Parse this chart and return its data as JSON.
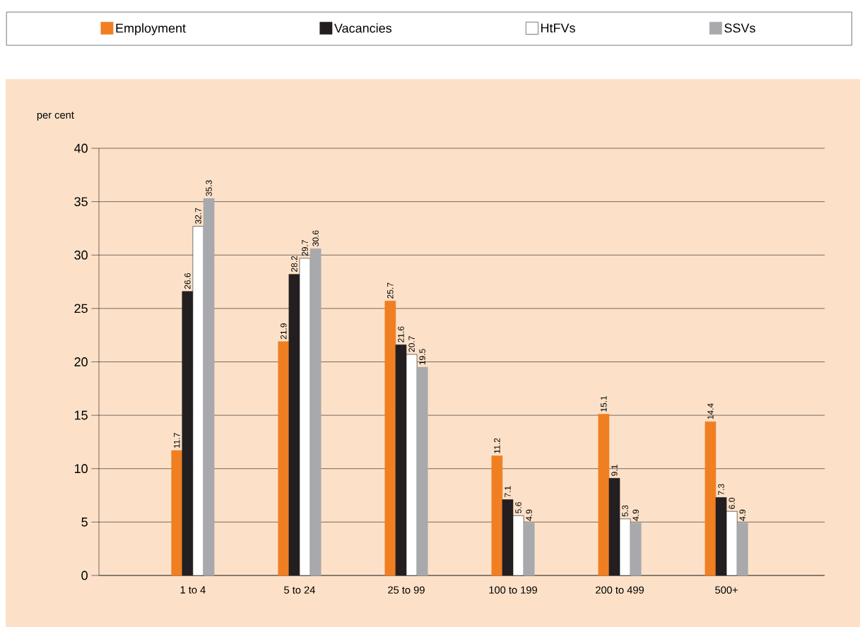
{
  "chart_data": {
    "type": "bar",
    "ylabel": "per cent",
    "categories": [
      "1 to 4",
      "5 to 24",
      "25 to 99",
      "100 to 199",
      "200 to 499",
      "500+"
    ],
    "series": [
      {
        "name": "Employment",
        "color": "#f07f22",
        "values": [
          11.7,
          21.9,
          25.7,
          11.2,
          15.1,
          14.4
        ],
        "value_labels": [
          "11.7",
          "21.9",
          "25.7",
          "11.2",
          "15.1",
          "14.4"
        ]
      },
      {
        "name": "Vacancies",
        "color": "#231f20",
        "values": [
          26.6,
          28.2,
          21.6,
          7.1,
          9.1,
          7.3
        ],
        "value_labels": [
          "26.6",
          "28.2",
          "21.6",
          "7.1",
          "9.1",
          "7.3"
        ]
      },
      {
        "name": "HtFVs",
        "color": "#ffffff",
        "values": [
          32.7,
          29.7,
          20.7,
          5.6,
          5.3,
          6.0
        ],
        "value_labels": [
          "32.7",
          "29.7",
          "20.7",
          "5.6",
          "5.3",
          "6.0"
        ]
      },
      {
        "name": "SSVs",
        "color": "#a7a9ac",
        "values": [
          35.3,
          30.6,
          19.5,
          4.9,
          4.9,
          4.9
        ],
        "value_labels": [
          "35.3",
          "30.6",
          "19.5",
          "4.9",
          "4.9",
          "4.9"
        ]
      }
    ],
    "ylim": [
      0,
      40
    ],
    "yticks": [
      0,
      5,
      10,
      15,
      20,
      25,
      30,
      35,
      40
    ],
    "grid": "y",
    "legend": "top"
  }
}
